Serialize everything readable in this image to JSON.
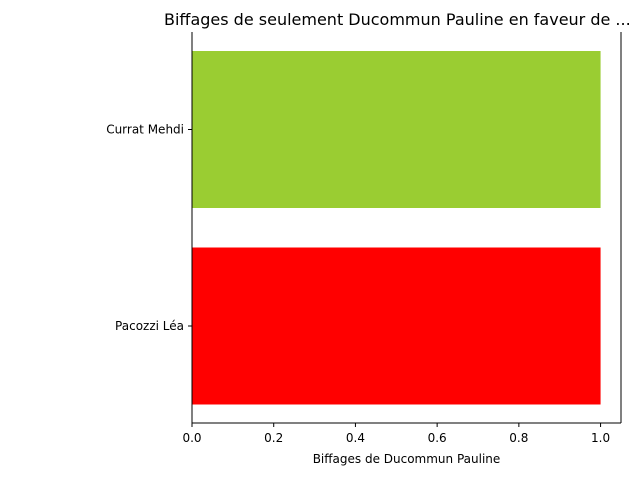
{
  "chart_data": {
    "type": "bar",
    "orientation": "horizontal",
    "title": "Biffages de seulement Ducommun Pauline en faveur de ...",
    "xlabel": "Biffages de Ducommun Pauline",
    "ylabel": "",
    "xlim": [
      0,
      1.05
    ],
    "xticks": [
      "0.0",
      "0.2",
      "0.4",
      "0.6",
      "0.8",
      "1.0"
    ],
    "categories": [
      "Pacozzi Léa",
      "Currat Mehdi"
    ],
    "values": [
      1,
      1
    ],
    "colors": [
      "#ff0000",
      "#9acd32"
    ],
    "grid": false,
    "legend": "none"
  }
}
